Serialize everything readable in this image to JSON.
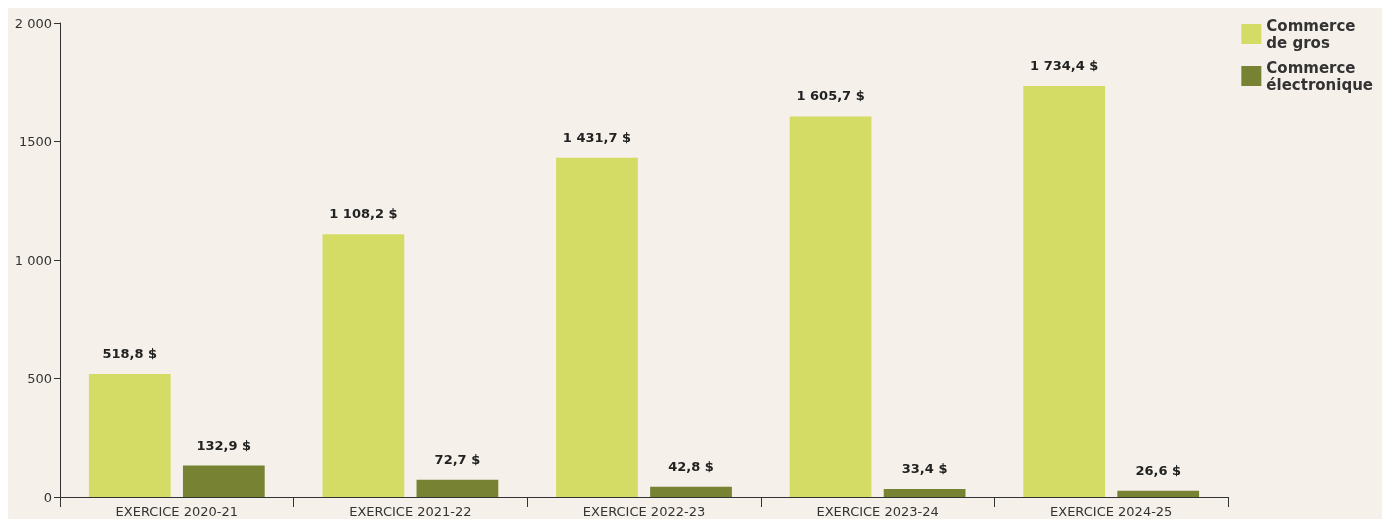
{
  "chart_data": {
    "type": "bar",
    "categories": [
      "EXERCICE 2020-21",
      "EXERCICE 2021-22",
      "EXERCICE 2022-23",
      "EXERCICE 2023-24",
      "EXERCICE 2024-25"
    ],
    "series": [
      {
        "name": "Commerce\nde gros",
        "color": "#d4dc66",
        "values": [
          518.8,
          1108.2,
          1431.7,
          1605.7,
          1734.4
        ],
        "value_labels": [
          "518,8 $",
          "1 108,2 $",
          "1 431,7 $",
          "1 605,7 $",
          "1 734,4 $"
        ]
      },
      {
        "name": "Commerce\nélectronique",
        "color": "#778233",
        "values": [
          132.9,
          72.7,
          42.8,
          33.4,
          26.6
        ],
        "value_labels": [
          "132,9 $",
          "72,7 $",
          "42,8 $",
          "33,4 $",
          "26,6 $"
        ]
      }
    ],
    "ylim": [
      0,
      2000
    ],
    "yticks": [
      0,
      500,
      {
        "value": 1000,
        "label": "1 000"
      },
      1500,
      {
        "value": 2000,
        "label": "2 000"
      }
    ],
    "grid": false,
    "legend": "top right"
  }
}
